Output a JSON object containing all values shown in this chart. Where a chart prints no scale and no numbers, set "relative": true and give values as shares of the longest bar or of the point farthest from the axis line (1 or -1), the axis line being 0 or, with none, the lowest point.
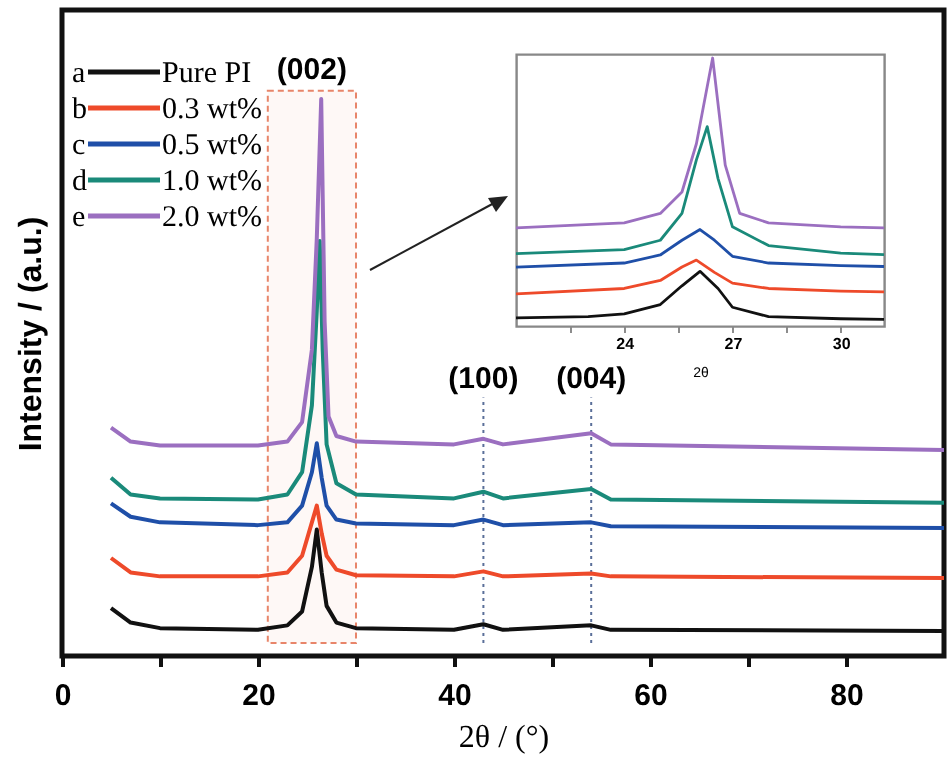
{
  "chart_data": [
    {
      "type": "line",
      "xlabel": "2θ / (°)",
      "ylabel": "Intensity / (a.u.)",
      "relative": true,
      "legend": "top left",
      "xlim": [
        0,
        90
      ],
      "xticks": [
        0,
        {
          "value": 10,
          "label": null
        },
        20,
        {
          "value": 30,
          "label": null
        },
        40,
        {
          "value": 50,
          "label": null
        },
        60,
        {
          "value": 70,
          "label": null
        },
        80
      ],
      "annotations": [
        "a",
        "b",
        "c",
        "d",
        "e",
        {
          "text": "(100)",
          "x": 43,
          "y": 0.464
        },
        {
          "text": "(004)",
          "x": 54,
          "y": 0.464
        }
      ],
      "ref_lines": [
        {
          "axis": "x",
          "value": 43,
          "color": "#5a6f99",
          "line_style": "dotted"
        },
        {
          "axis": "x",
          "value": 54,
          "color": "#5a6f99",
          "line_style": "dotted"
        }
      ],
      "bands": [
        {
          "axis": "x",
          "from": 21,
          "to": 30,
          "label": "(002)",
          "color": "#e8856a"
        }
      ],
      "series": [
        {
          "name": "Pure PI",
          "color": "#111111",
          "x": [
            5,
            7,
            10,
            20,
            23,
            24.5,
            25.5,
            26,
            26.5,
            27,
            28,
            30,
            40,
            43,
            45,
            54,
            56,
            90
          ],
          "values": [
            0.086,
            0.06,
            0.05,
            0.047,
            0.055,
            0.08,
            0.16,
            0.227,
            0.15,
            0.09,
            0.06,
            0.05,
            0.047,
            0.057,
            0.047,
            0.055,
            0.047,
            0.045
          ]
        },
        {
          "name": "0.3 wt%",
          "color": "#ee4a2a",
          "x": [
            5,
            7,
            10,
            20,
            23,
            24.5,
            25.5,
            26,
            26.5,
            27,
            28,
            30,
            40,
            43,
            45,
            54,
            56,
            90
          ],
          "values": [
            0.176,
            0.15,
            0.143,
            0.143,
            0.15,
            0.18,
            0.24,
            0.27,
            0.22,
            0.18,
            0.155,
            0.145,
            0.143,
            0.152,
            0.143,
            0.148,
            0.143,
            0.14
          ]
        },
        {
          "name": "0.5 wt%",
          "color": "#1f4fa8",
          "x": [
            5,
            7,
            10,
            20,
            23,
            24.5,
            25.5,
            26,
            26.5,
            27,
            28,
            30,
            40,
            43,
            45,
            54,
            56,
            90
          ],
          "values": [
            0.274,
            0.25,
            0.24,
            0.235,
            0.24,
            0.27,
            0.33,
            0.382,
            0.32,
            0.27,
            0.245,
            0.238,
            0.235,
            0.245,
            0.235,
            0.24,
            0.233,
            0.23
          ]
        },
        {
          "name": "1.0 wt%",
          "color": "#1a8a7a",
          "x": [
            5,
            7,
            10,
            20,
            23,
            24.5,
            25.5,
            26,
            26.3,
            26.6,
            27,
            28,
            30,
            40,
            43,
            45,
            54,
            56,
            90
          ],
          "values": [
            0.32,
            0.29,
            0.283,
            0.281,
            0.29,
            0.33,
            0.45,
            0.62,
            0.745,
            0.55,
            0.38,
            0.31,
            0.29,
            0.283,
            0.295,
            0.283,
            0.3,
            0.281,
            0.275
          ]
        },
        {
          "name": "2.0 wt%",
          "color": "#9b6fc0",
          "x": [
            5,
            7,
            10,
            20,
            23,
            24.5,
            25.5,
            26,
            26.45,
            26.8,
            27.2,
            28,
            30,
            40,
            43,
            45,
            54,
            56,
            90
          ],
          "values": [
            0.41,
            0.385,
            0.378,
            0.378,
            0.385,
            0.42,
            0.55,
            0.75,
            1,
            0.6,
            0.43,
            0.395,
            0.385,
            0.38,
            0.39,
            0.38,
            0.4,
            0.38,
            0.37
          ]
        }
      ]
    },
    {
      "type": "line",
      "xlabel": "2θ",
      "relative": true,
      "xlim": [
        21,
        31.2
      ],
      "xticks": [
        {
          "value": 22.5,
          "label": null
        },
        24,
        {
          "value": 25.5,
          "label": null
        },
        27,
        {
          "value": 28.5,
          "label": null
        },
        30
      ],
      "series": [
        {
          "color": "#111111",
          "x": [
            21,
            23,
            24,
            25,
            25.6,
            26.1,
            26.6,
            27,
            28,
            30,
            31.2
          ],
          "values": [
            0.03,
            0.035,
            0.045,
            0.08,
            0.15,
            0.204,
            0.14,
            0.07,
            0.035,
            0.027,
            0.025
          ]
        },
        {
          "color": "#ee4a2a",
          "x": [
            21,
            24,
            25,
            25.6,
            26,
            26.5,
            27,
            28,
            30,
            31.2
          ],
          "values": [
            0.12,
            0.14,
            0.17,
            0.22,
            0.246,
            0.2,
            0.16,
            0.14,
            0.13,
            0.127
          ]
        },
        {
          "color": "#1f4fa8",
          "x": [
            21,
            24,
            25,
            25.6,
            26.1,
            26.5,
            27,
            28,
            30,
            31.2
          ],
          "values": [
            0.22,
            0.235,
            0.265,
            0.32,
            0.36,
            0.32,
            0.26,
            0.235,
            0.225,
            0.222
          ]
        },
        {
          "color": "#1a8a7a",
          "x": [
            21,
            24,
            25,
            25.6,
            26,
            26.3,
            26.6,
            27,
            28,
            30,
            31.2
          ],
          "values": [
            0.27,
            0.285,
            0.32,
            0.42,
            0.62,
            0.744,
            0.55,
            0.37,
            0.3,
            0.272,
            0.266
          ]
        },
        {
          "color": "#9b6fc0",
          "x": [
            21,
            24,
            25,
            25.6,
            26,
            26.45,
            26.8,
            27.2,
            28,
            30,
            31.2
          ],
          "values": [
            0.366,
            0.385,
            0.42,
            0.5,
            0.68,
            1,
            0.6,
            0.42,
            0.385,
            0.37,
            0.366
          ]
        }
      ]
    }
  ]
}
